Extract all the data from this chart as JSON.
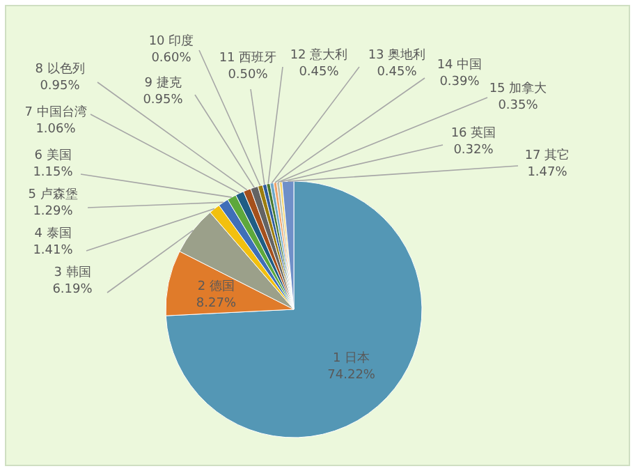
{
  "chart_data": {
    "type": "pie",
    "categories": [
      "1 日本",
      "2 德国",
      "3 韩国",
      "4 泰国",
      "5 卢森堡",
      "6 美国",
      "7 中国台湾",
      "8 以色列",
      "9 捷克",
      "10 印度",
      "11 西班牙",
      "12 意大利",
      "13 奥地利",
      "14 中国",
      "15 加拿大",
      "16 英国",
      "17 其它"
    ],
    "values": [
      74.22,
      8.27,
      6.19,
      1.41,
      1.29,
      1.15,
      1.06,
      0.95,
      0.95,
      0.6,
      0.5,
      0.45,
      0.45,
      0.39,
      0.35,
      0.32,
      1.47
    ],
    "value_labels": [
      "74.22%",
      "8.27%",
      "6.19%",
      "1.41%",
      "1.29%",
      "1.15%",
      "1.06%",
      "0.95%",
      "0.95%",
      "0.60%",
      "0.50%",
      "0.45%",
      "0.45%",
      "0.39%",
      "0.35%",
      "0.32%",
      "1.47%"
    ],
    "colors": [
      "#5497b5",
      "#e07b2a",
      "#9ba08a",
      "#f2c00f",
      "#3f6fb8",
      "#5da83c",
      "#1f5d85",
      "#a5501c",
      "#636363",
      "#9b7d0f",
      "#2e5d9e",
      "#4a7a30",
      "#6fa9c9",
      "#f0a46a",
      "#b8bfad",
      "#f5d56a",
      "#6f8fc8"
    ]
  }
}
